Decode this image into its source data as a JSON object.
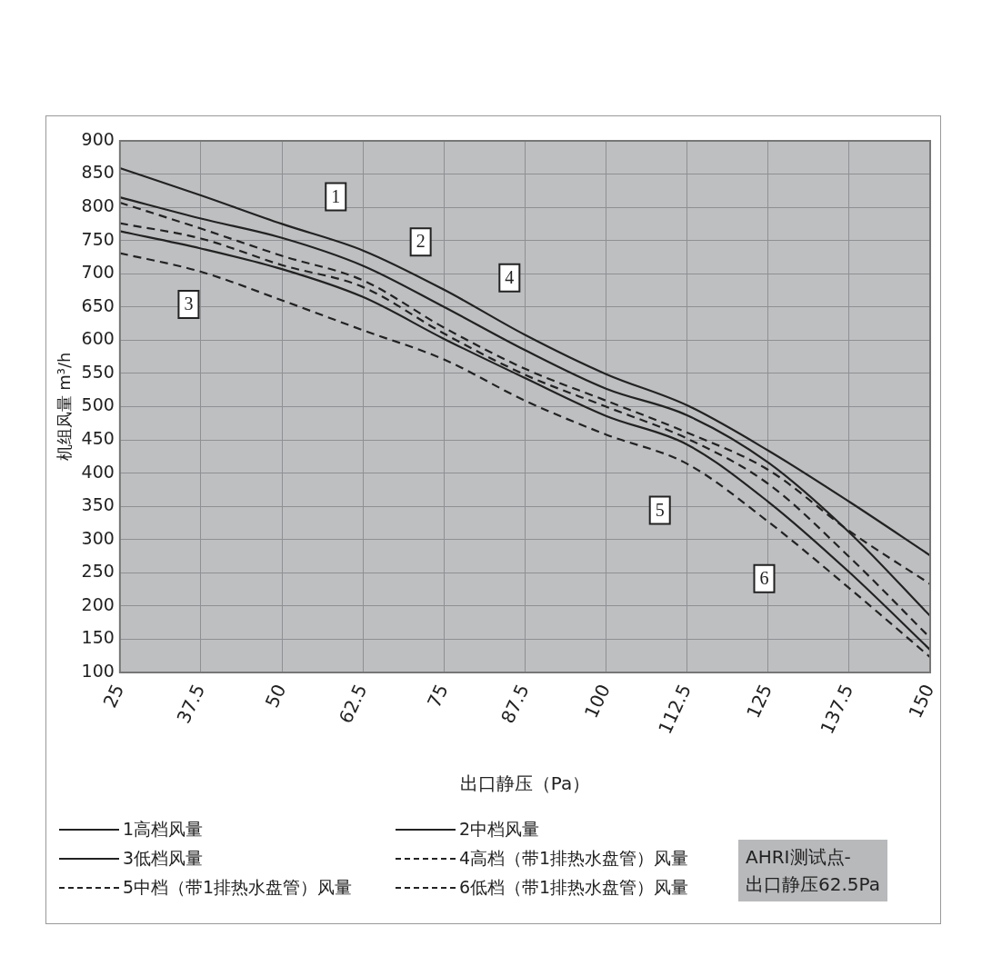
{
  "chart_data": {
    "type": "line",
    "xlabel": "出口静压（Pa）",
    "ylabel": "机组风量 m³/h",
    "x": [
      25,
      37.5,
      50,
      62.5,
      75,
      87.5,
      100,
      112.5,
      125,
      137.5,
      150
    ],
    "series": [
      {
        "name": "1高档风量",
        "color": "#222222",
        "line_style": "solid",
        "values": [
          859,
          818,
          775,
          735,
          676,
          608,
          549,
          502,
          434,
          357,
          276
        ]
      },
      {
        "name": "2中档风量",
        "color": "#222222",
        "line_style": "solid",
        "values": [
          815,
          783,
          754,
          712,
          650,
          585,
          527,
          487,
          416,
          311,
          185
        ]
      },
      {
        "name": "3低档风量",
        "color": "#222222",
        "line_style": "solid",
        "values": [
          764,
          738,
          707,
          665,
          602,
          543,
          486,
          443,
          357,
          251,
          134
        ]
      },
      {
        "name": "4高档（带1排热水盘管）风量",
        "color": "#222222",
        "line_style": "dashed",
        "values": [
          807,
          768,
          727,
          690,
          619,
          557,
          509,
          461,
          405,
          313,
          233
        ]
      },
      {
        "name": "5中档（带1排热水盘管）风量",
        "color": "#222222",
        "line_style": "dashed",
        "values": [
          776,
          753,
          713,
          680,
          610,
          548,
          500,
          452,
          384,
          274,
          152
        ]
      },
      {
        "name": "6低档（带1排热水盘管）风量",
        "color": "#222222",
        "line_style": "dashed",
        "values": [
          731,
          703,
          660,
          615,
          571,
          509,
          458,
          414,
          327,
          227,
          123
        ]
      }
    ],
    "xlim": [
      25,
      150
    ],
    "xticks": [
      25,
      37.5,
      50,
      62.5,
      75,
      87.5,
      100,
      112.5,
      125,
      137.5,
      150
    ],
    "ylim": [
      100,
      900
    ],
    "yticks": [
      100,
      150,
      200,
      250,
      300,
      350,
      400,
      450,
      500,
      550,
      600,
      650,
      700,
      750,
      800,
      850,
      900
    ],
    "grid": true,
    "legend": "bottom",
    "marker": "none",
    "annotations": [
      {
        "text": "1",
        "x": 58.3,
        "y": 816
      },
      {
        "text": "2",
        "x": 71.4,
        "y": 748
      },
      {
        "text": "3",
        "x": 35.6,
        "y": 654
      },
      {
        "text": "4",
        "x": 85.1,
        "y": 694
      },
      {
        "text": "5",
        "x": 108.3,
        "y": 344
      },
      {
        "text": "6",
        "x": 124.4,
        "y": 241
      },
      "AHRI测试点-\n出口静压62.5Pa"
    ]
  }
}
